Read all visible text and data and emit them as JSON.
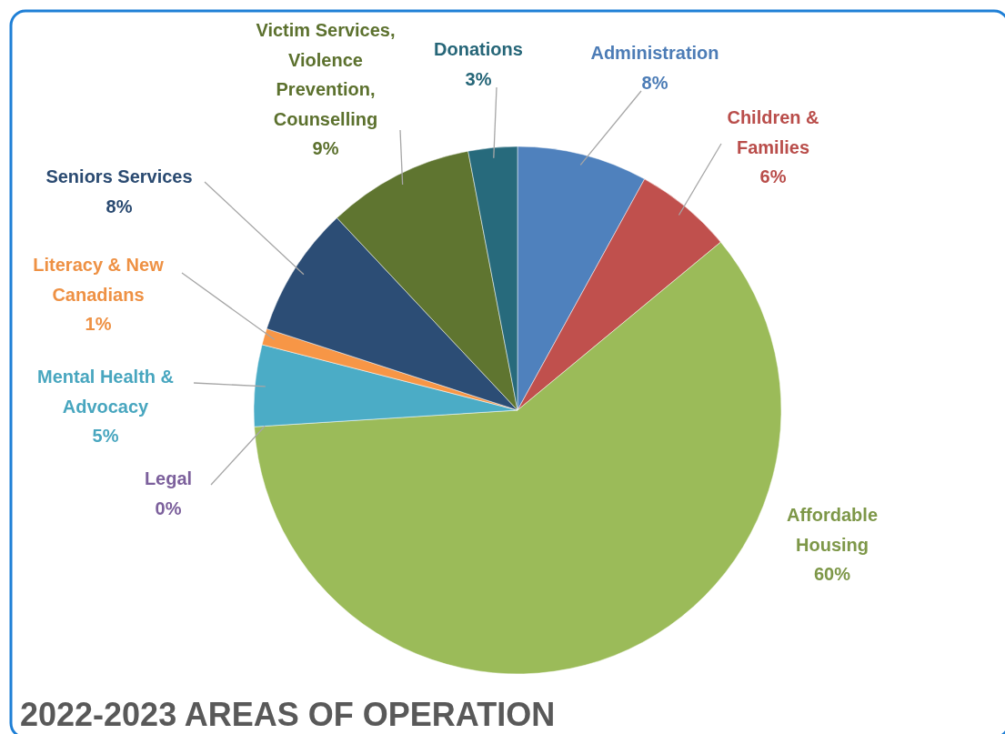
{
  "chart_data": {
    "type": "pie",
    "title": "2022-2023 AREAS OF OPERATION",
    "categories": [
      "Administration",
      "Children & Families",
      "Affordable Housing",
      "Legal",
      "Mental Health & Advocacy",
      "Literacy & New Canadians",
      "Seniors Services",
      "Victim Services, Violence Prevention, Counselling",
      "Donations"
    ],
    "values": [
      8,
      6,
      60,
      0,
      5,
      1,
      8,
      9,
      3
    ],
    "colors": [
      "#4f81bd",
      "#c0504d",
      "#9bbb59",
      "#8064a2",
      "#4bacc6",
      "#f79646",
      "#2c4d75",
      "#5f7530",
      "#276a7c"
    ],
    "value_labels": [
      "8%",
      "6%",
      "60%",
      "0%",
      "5%",
      "1%",
      "8%",
      "9%",
      "3%"
    ]
  }
}
